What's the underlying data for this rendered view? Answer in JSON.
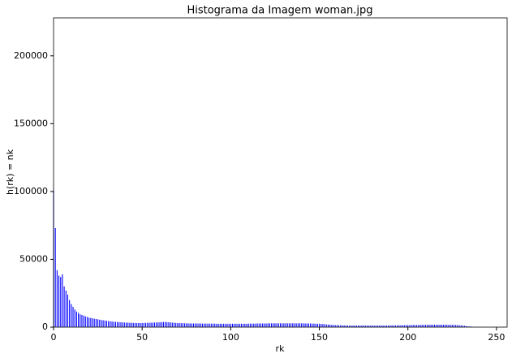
{
  "chart_data": {
    "type": "bar",
    "title": "Histograma da Imagem woman.jpg",
    "x_label": "rk",
    "y_label": "h(rk) = nk",
    "color": "#0000ff",
    "x": [
      0,
      1,
      2,
      3,
      4,
      5,
      6,
      7,
      8,
      9,
      10,
      11,
      12,
      13,
      14,
      15,
      16,
      17,
      18,
      19,
      20,
      21,
      22,
      23,
      24,
      25,
      26,
      27,
      28,
      29,
      30,
      31,
      32,
      33,
      34,
      35,
      36,
      37,
      38,
      39,
      40,
      41,
      42,
      43,
      44,
      45,
      46,
      47,
      48,
      49,
      50,
      51,
      52,
      53,
      54,
      55,
      56,
      57,
      58,
      59,
      60,
      61,
      62,
      63,
      64,
      65,
      66,
      67,
      68,
      69,
      70,
      71,
      72,
      73,
      74,
      75,
      76,
      77,
      78,
      79,
      80,
      81,
      82,
      83,
      84,
      85,
      86,
      87,
      88,
      89,
      90,
      91,
      92,
      93,
      94,
      95,
      96,
      97,
      98,
      99,
      100,
      101,
      102,
      103,
      104,
      105,
      106,
      107,
      108,
      109,
      110,
      111,
      112,
      113,
      114,
      115,
      116,
      117,
      118,
      119,
      120,
      121,
      122,
      123,
      124,
      125,
      126,
      127,
      128,
      129,
      130,
      131,
      132,
      133,
      134,
      135,
      136,
      137,
      138,
      139,
      140,
      141,
      142,
      143,
      144,
      145,
      146,
      147,
      148,
      149,
      150,
      151,
      152,
      153,
      154,
      155,
      156,
      157,
      158,
      159,
      160,
      161,
      162,
      163,
      164,
      165,
      166,
      167,
      168,
      169,
      170,
      171,
      172,
      173,
      174,
      175,
      176,
      177,
      178,
      179,
      180,
      181,
      182,
      183,
      184,
      185,
      186,
      187,
      188,
      189,
      190,
      191,
      192,
      193,
      194,
      195,
      196,
      197,
      198,
      199,
      200,
      201,
      202,
      203,
      204,
      205,
      206,
      207,
      208,
      209,
      210,
      211,
      212,
      213,
      214,
      215,
      216,
      217,
      218,
      219,
      220,
      221,
      222,
      223,
      224,
      225,
      226,
      227,
      228,
      229,
      230,
      231,
      232,
      233,
      234,
      235,
      236,
      237,
      238,
      239,
      240,
      241,
      242,
      243,
      244,
      245,
      246,
      247,
      248,
      249,
      250,
      251,
      252,
      253,
      254,
      255
    ],
    "values": [
      101000,
      73000,
      42000,
      38000,
      37000,
      39000,
      30000,
      27000,
      24000,
      20000,
      17000,
      15000,
      13000,
      11500,
      10500,
      9500,
      9000,
      8500,
      8000,
      7500,
      7000,
      6800,
      6500,
      6200,
      6000,
      5800,
      5500,
      5300,
      5100,
      4900,
      4700,
      4500,
      4300,
      4200,
      4000,
      3900,
      3800,
      3700,
      3600,
      3500,
      3400,
      3300,
      3300,
      3200,
      3200,
      3100,
      3100,
      3000,
      3000,
      3000,
      3000,
      3100,
      3100,
      3200,
      3200,
      3300,
      3300,
      3400,
      3400,
      3500,
      3600,
      3700,
      3800,
      3800,
      3700,
      3600,
      3500,
      3300,
      3200,
      3100,
      3000,
      3000,
      2900,
      2900,
      2800,
      2800,
      2800,
      2700,
      2700,
      2700,
      2700,
      2700,
      2700,
      2700,
      2600,
      2600,
      2600,
      2600,
      2600,
      2600,
      2600,
      2600,
      2500,
      2500,
      2500,
      2500,
      2500,
      2500,
      2500,
      2500,
      2500,
      2500,
      2500,
      2500,
      2500,
      2500,
      2500,
      2500,
      2500,
      2500,
      2600,
      2600,
      2600,
      2600,
      2600,
      2700,
      2700,
      2700,
      2700,
      2700,
      2700,
      2800,
      2800,
      2800,
      2800,
      2800,
      2800,
      2800,
      2800,
      2800,
      2800,
      2800,
      2800,
      2800,
      2800,
      2800,
      2800,
      2800,
      2800,
      2800,
      2800,
      2800,
      2700,
      2700,
      2700,
      2700,
      2600,
      2600,
      2500,
      2500,
      2500,
      2400,
      2300,
      2200,
      2000,
      1900,
      1800,
      1700,
      1600,
      1500,
      1500,
      1400,
      1400,
      1300,
      1300,
      1300,
      1200,
      1200,
      1200,
      1200,
      1200,
      1200,
      1200,
      1200,
      1200,
      1200,
      1200,
      1200,
      1200,
      1200,
      1200,
      1200,
      1200,
      1200,
      1200,
      1200,
      1200,
      1200,
      1200,
      1200,
      1300,
      1300,
      1300,
      1300,
      1300,
      1400,
      1400,
      1400,
      1400,
      1500,
      1500,
      1500,
      1500,
      1600,
      1600,
      1600,
      1600,
      1700,
      1700,
      1700,
      1700,
      1700,
      1800,
      1800,
      1800,
      1800,
      1800,
      1800,
      1800,
      1800,
      1800,
      1800,
      1800,
      1700,
      1700,
      1700,
      1600,
      1600,
      1500,
      1400,
      1300,
      1200,
      1000,
      800,
      600,
      500,
      400,
      300,
      300,
      200,
      200,
      200,
      200,
      150,
      150,
      100,
      100,
      100,
      100,
      100,
      100,
      100,
      100,
      100,
      200,
      300
    ],
    "xlim": [
      0,
      256
    ],
    "ylim": [
      0,
      228000
    ],
    "xticks": [
      0,
      50,
      100,
      150,
      200,
      250
    ],
    "yticks": [
      0,
      50000,
      100000,
      150000,
      200000
    ]
  }
}
